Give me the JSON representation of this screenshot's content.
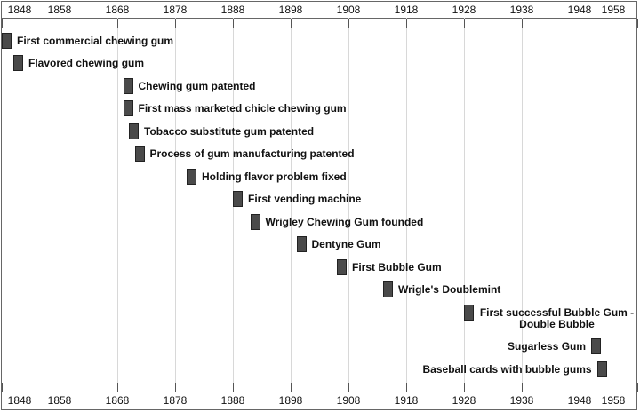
{
  "chart_data": {
    "type": "timeline",
    "title": "",
    "xlim": [
      1848,
      1958.6
    ],
    "grid": true,
    "ticks": [
      1848,
      1858,
      1868,
      1878,
      1888,
      1898,
      1908,
      1918,
      1928,
      1938,
      1948,
      1958
    ],
    "colors": {
      "bar": "#4a4a4a",
      "grid": "#d8d8d8"
    },
    "events": [
      {
        "year": 1848,
        "label": "First commercial chewing gum",
        "side": "right"
      },
      {
        "year": 1850,
        "label": "Flavored chewing gum",
        "side": "right"
      },
      {
        "year": 1869,
        "label": "Chewing gum patented",
        "side": "right"
      },
      {
        "year": 1869,
        "label": "First mass marketed chicle chewing gum",
        "side": "right"
      },
      {
        "year": 1870,
        "label": "Tobacco substitute gum patented",
        "side": "right"
      },
      {
        "year": 1871,
        "label": "Process of gum manufacturing patented",
        "side": "right"
      },
      {
        "year": 1880,
        "label": "Holding flavor problem fixed",
        "side": "right"
      },
      {
        "year": 1888,
        "label": "First vending machine",
        "side": "right"
      },
      {
        "year": 1891,
        "label": "Wrigley Chewing Gum founded",
        "side": "right"
      },
      {
        "year": 1899,
        "label": "Dentyne Gum",
        "side": "right"
      },
      {
        "year": 1906,
        "label": "First Bubble Gum",
        "side": "right"
      },
      {
        "year": 1914,
        "label": "Wrigle's Doublemint",
        "side": "right"
      },
      {
        "year": 1928,
        "label": "First successful Bubble Gum - Double Bubble",
        "side": "right"
      },
      {
        "year": 1950,
        "label": "Sugarless Gum",
        "side": "left"
      },
      {
        "year": 1951,
        "label": "Baseball cards with bubble gums",
        "side": "left"
      }
    ]
  }
}
